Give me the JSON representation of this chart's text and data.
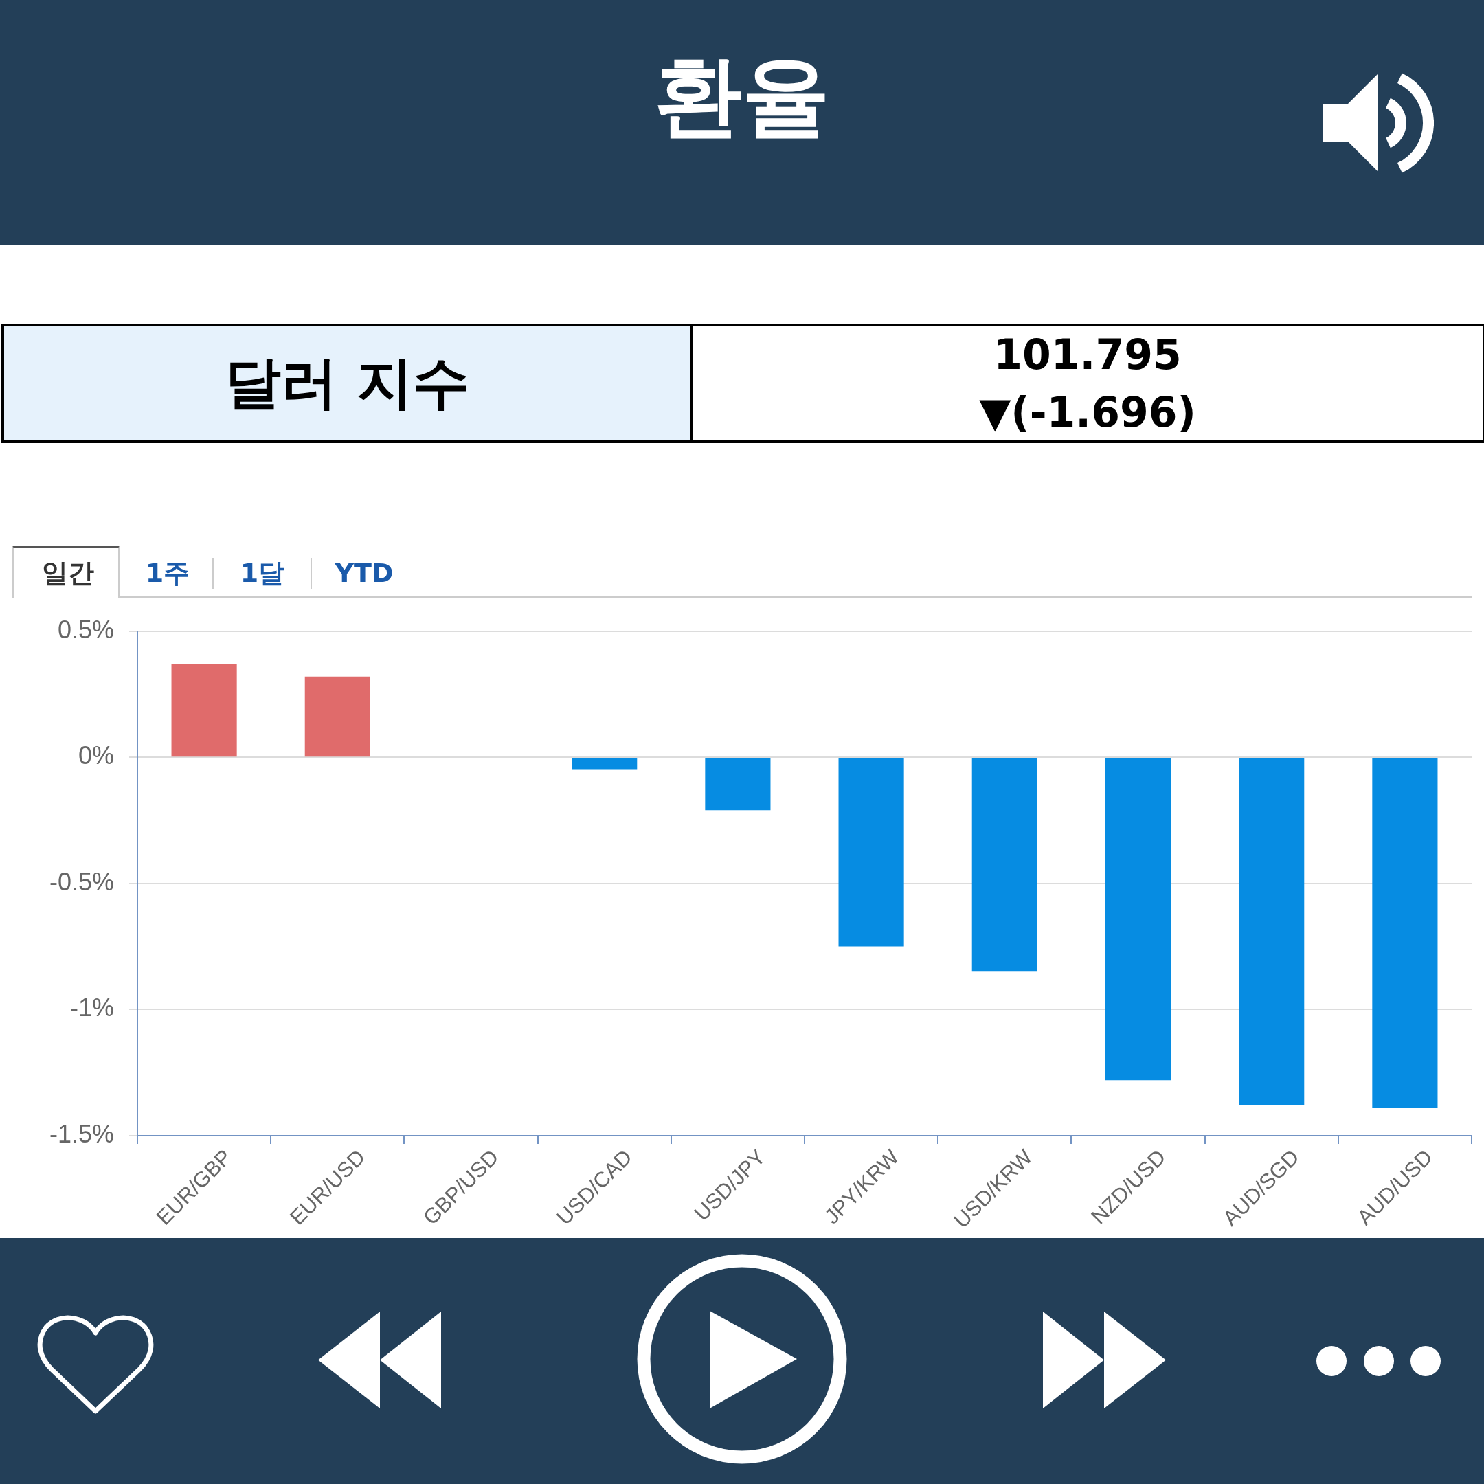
{
  "chart_data": {
    "type": "bar",
    "title": "환율",
    "annotations": [
      "달러 지수",
      "101.795",
      "▼(-1.696)",
      "일간",
      "1주",
      "1달",
      "YTD"
    ],
    "categories": [
      "EUR/GBP",
      "EUR/USD",
      "GBP/USD",
      "USD/CAD",
      "USD/JPY",
      "JPY/KRW",
      "USD/KRW",
      "NZD/USD",
      "AUD/SGD",
      "AUD/USD"
    ],
    "values": [
      0.37,
      0.32,
      0,
      -0.05,
      -0.21,
      -0.75,
      -0.85,
      -1.28,
      -1.38,
      -1.39
    ],
    "colors": [
      "#e06b6b",
      "#e06b6b",
      "#068ce2",
      "#068ce2",
      "#068ce2",
      "#068ce2",
      "#068ce2",
      "#068ce2",
      "#068ce2",
      "#068ce2"
    ],
    "ylim": [
      -1.5,
      0.5
    ],
    "yticks": [
      {
        "value": 0.5,
        "label": "0.5%"
      },
      {
        "value": 0,
        "label": "0%"
      },
      {
        "value": -0.5,
        "label": "-0.5%"
      },
      {
        "value": -1,
        "label": "-1%"
      },
      {
        "value": -1.5,
        "label": "-1.5%"
      }
    ],
    "grid": "y"
  }
}
